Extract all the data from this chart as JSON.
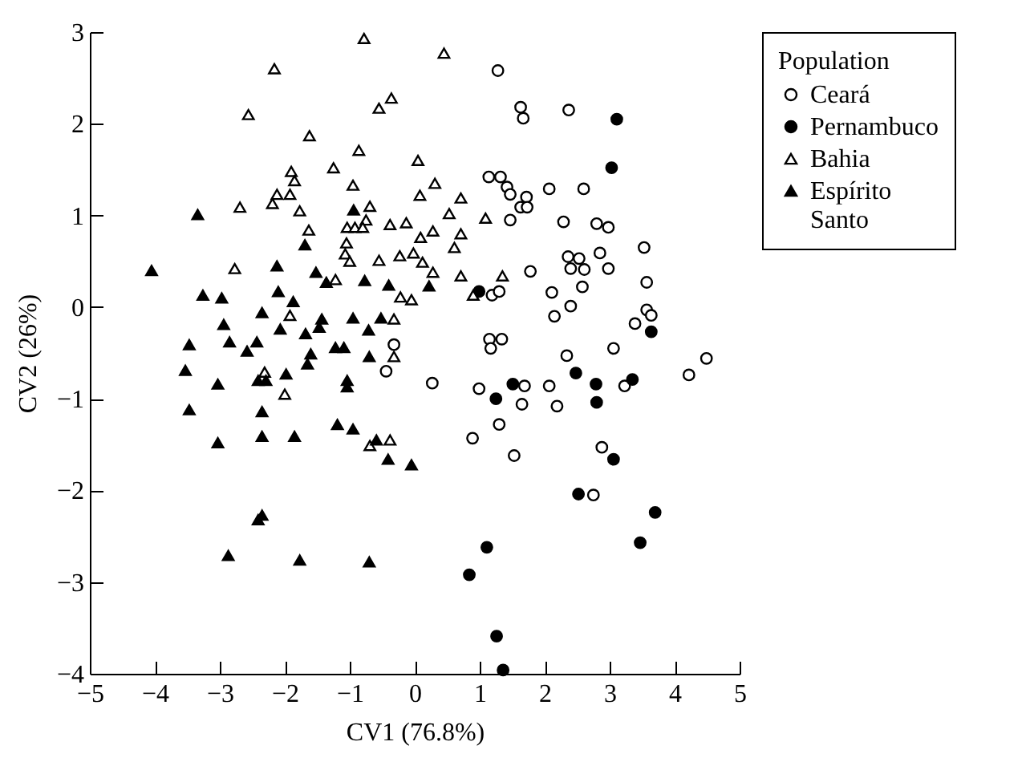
{
  "chart_data": {
    "type": "scatter",
    "xlabel": "CV1 (76.8%)",
    "ylabel": "CV2 (26%)",
    "legend_title": "Population",
    "legend": "right",
    "grid": false,
    "xlim": [
      -5,
      5
    ],
    "xticks": [
      -5,
      -4,
      -3,
      -2,
      -1,
      0,
      1,
      2,
      3,
      4,
      5
    ],
    "ylim": [
      -4,
      3
    ],
    "yticks": [
      -4,
      -3,
      -2,
      -1,
      0,
      1,
      2,
      3
    ],
    "series": [
      {
        "name": "Ceará",
        "color": "#000000",
        "marker": "circle-open",
        "x": [
          1.28,
          1.63,
          1.67,
          2.37,
          1.14,
          1.32,
          1.42,
          1.47,
          1.72,
          1.63,
          1.73,
          2.07,
          2.6,
          1.47,
          2.29,
          2.8,
          2.98,
          3.53,
          1.78,
          2.36,
          2.53,
          2.4,
          2.61,
          2.85,
          2.98,
          2.58,
          3.57,
          2.11,
          2.4,
          2.15,
          3.39,
          3.57,
          3.64,
          1.19,
          1.3,
          1.15,
          1.34,
          1.17,
          2.34,
          3.06,
          4.49,
          4.22,
          -0.32,
          -0.44,
          0.27,
          0.99,
          1.69,
          2.07,
          1.65,
          2.19,
          3.23,
          1.3,
          0.89,
          1.53,
          2.88,
          2.75
        ],
        "values": [
          2.58,
          2.18,
          2.06,
          2.15,
          1.42,
          1.42,
          1.31,
          1.23,
          1.2,
          1.09,
          1.09,
          1.29,
          1.29,
          0.95,
          0.93,
          0.91,
          0.87,
          0.65,
          0.39,
          0.55,
          0.53,
          0.42,
          0.41,
          0.59,
          0.42,
          0.22,
          0.27,
          0.16,
          0.01,
          -0.1,
          -0.18,
          -0.03,
          -0.09,
          0.13,
          0.17,
          -0.35,
          -0.35,
          -0.45,
          -0.53,
          -0.45,
          -0.56,
          -0.74,
          -0.41,
          -0.7,
          -0.83,
          -0.89,
          -0.86,
          -0.86,
          -1.06,
          -1.08,
          -0.86,
          -1.28,
          -1.43,
          -1.62,
          -1.53,
          -2.05
        ]
      },
      {
        "name": "Pernambuco",
        "color": "#000000",
        "marker": "circle",
        "x": [
          3.11,
          3.03,
          0.99,
          3.64,
          2.48,
          2.79,
          3.35,
          1.51,
          1.25,
          2.8,
          3.06,
          2.52,
          3.7,
          3.47,
          1.11,
          0.84,
          1.26,
          1.36
        ],
        "values": [
          2.05,
          1.52,
          0.17,
          -0.27,
          -0.72,
          -0.84,
          -0.79,
          -0.84,
          -1.0,
          -1.04,
          -1.66,
          -2.04,
          -2.24,
          -2.57,
          -2.62,
          -2.92,
          -3.59,
          -3.96
        ]
      },
      {
        "name": "Bahia",
        "color": "#000000",
        "marker": "triangle-open",
        "x": [
          -0.78,
          -2.16,
          -2.56,
          -1.62,
          -0.86,
          -0.55,
          -0.36,
          -1.25,
          -1.9,
          -1.85,
          -2.12,
          -1.92,
          -2.19,
          -1.77,
          -2.69,
          -0.95,
          -0.69,
          -0.75,
          -1.04,
          -0.92,
          -0.8,
          -0.38,
          -0.13,
          -1.63,
          -1.05,
          -1.07,
          -1.0,
          -0.55,
          -0.23,
          -2.77,
          -1.22,
          -0.22,
          -0.05,
          -1.92,
          -0.32,
          -2.31,
          -0.32,
          -2.0,
          -0.69,
          -0.38,
          0.45,
          0.05,
          0.31,
          0.08,
          0.71,
          0.53,
          1.09,
          0.09,
          0.28,
          0.71,
          0.61,
          -0.02,
          0.12,
          0.28,
          0.71,
          1.35,
          0.9
        ],
        "values": [
          2.93,
          2.6,
          2.1,
          1.87,
          1.71,
          2.17,
          2.28,
          1.52,
          1.48,
          1.38,
          1.23,
          1.23,
          1.13,
          1.05,
          1.09,
          1.33,
          1.1,
          0.95,
          0.87,
          0.87,
          0.87,
          0.9,
          0.92,
          0.84,
          0.7,
          0.58,
          0.5,
          0.51,
          0.56,
          0.42,
          0.3,
          0.11,
          0.08,
          -0.09,
          -0.13,
          -0.71,
          -0.54,
          -0.95,
          -1.51,
          -1.45,
          2.77,
          1.6,
          1.35,
          1.22,
          1.19,
          1.02,
          0.97,
          0.76,
          0.83,
          0.8,
          0.65,
          0.59,
          0.49,
          0.38,
          0.34,
          0.34,
          0.13
        ]
      },
      {
        "name": "Espírito Santo",
        "color": "#000000",
        "marker": "triangle",
        "x": [
          -3.34,
          -4.05,
          -2.12,
          -3.26,
          -2.97,
          -2.1,
          -1.87,
          -2.35,
          -2.94,
          -2.07,
          -1.68,
          -1.43,
          -1.47,
          -1.52,
          -1.36,
          -1.69,
          -0.94,
          -0.77,
          -0.4,
          -0.95,
          -0.71,
          -0.52,
          -3.47,
          -2.85,
          -2.58,
          -2.43,
          -1.6,
          -1.22,
          -1.09,
          -0.7,
          -3.53,
          -3.03,
          -2.41,
          -2.29,
          -1.98,
          -1.65,
          -1.04,
          -1.04,
          -3.47,
          -2.35,
          -3.03,
          -2.35,
          -1.85,
          -1.19,
          -0.95,
          -0.59,
          -0.41,
          -0.05,
          -2.41,
          -2.35,
          -2.87,
          -1.77,
          -0.7,
          0.22
        ],
        "values": [
          1.01,
          0.4,
          0.45,
          0.13,
          0.1,
          0.17,
          0.06,
          -0.06,
          -0.19,
          -0.24,
          -0.29,
          -0.13,
          -0.22,
          0.38,
          0.27,
          0.68,
          1.06,
          0.29,
          0.24,
          -0.12,
          -0.25,
          -0.12,
          -0.41,
          -0.38,
          -0.48,
          -0.38,
          -0.51,
          -0.44,
          -0.44,
          -0.54,
          -0.69,
          -0.84,
          -0.8,
          -0.8,
          -0.73,
          -0.62,
          -0.8,
          -0.87,
          -1.12,
          -1.14,
          -1.48,
          -1.41,
          -1.41,
          -1.28,
          -1.33,
          -1.45,
          -1.66,
          -1.72,
          -2.32,
          -2.27,
          -2.71,
          -2.76,
          -2.78,
          0.23
        ]
      }
    ]
  }
}
